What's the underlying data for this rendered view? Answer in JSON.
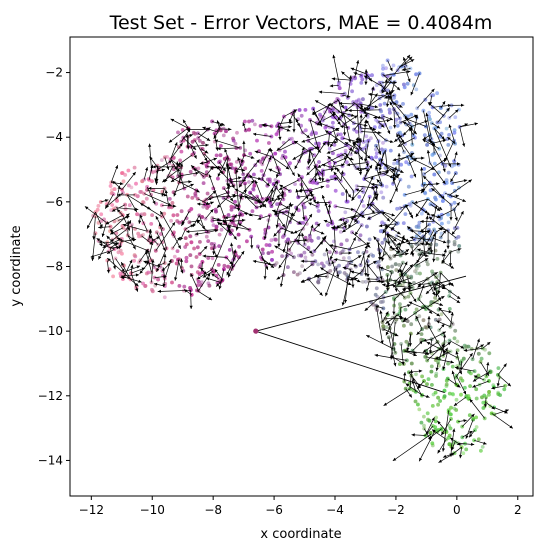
{
  "chart_data": {
    "type": "scatter",
    "title": "Test Set - Error Vectors, MAE = 0.4084m",
    "xlabel": "x coordinate",
    "ylabel": "y coordinate",
    "xlim": [
      -12.7,
      2.5
    ],
    "ylim": [
      -15.1,
      -0.9
    ],
    "xticks": [
      -12,
      -10,
      -8,
      -6,
      -4,
      -2,
      0,
      2
    ],
    "yticks": [
      -14,
      -12,
      -10,
      -8,
      -6,
      -4,
      -2
    ],
    "grid": false,
    "legend": "none",
    "colors": {
      "pink": "#e8708f",
      "magenta": "#a0208a",
      "purple": "#9b4fd0",
      "blue": "#6f8fe0",
      "gray": "#7a7f80",
      "green": "#55c23a"
    },
    "outlier_point": {
      "x": -6.6,
      "y": -10.0
    },
    "outlier_vectors": [
      {
        "from": [
          -6.6,
          -10.0
        ],
        "to": [
          0.3,
          -8.3
        ]
      },
      {
        "from": [
          -6.6,
          -10.0
        ],
        "to": [
          -0.4,
          -11.9
        ]
      }
    ]
  }
}
